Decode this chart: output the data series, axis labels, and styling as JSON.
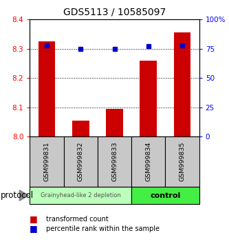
{
  "title": "GDS5113 / 10585097",
  "samples": [
    "GSM999831",
    "GSM999832",
    "GSM999833",
    "GSM999834",
    "GSM999835"
  ],
  "transformed_counts": [
    8.325,
    8.055,
    8.095,
    8.26,
    8.355
  ],
  "percentile_ranks": [
    78,
    75,
    75,
    77,
    78
  ],
  "ylim_left": [
    8.0,
    8.4
  ],
  "ylim_right": [
    0,
    100
  ],
  "yticks_left": [
    8.0,
    8.1,
    8.2,
    8.3,
    8.4
  ],
  "yticks_right": [
    0,
    25,
    50,
    75,
    100
  ],
  "ytick_labels_right": [
    "0",
    "25",
    "50",
    "75",
    "100%"
  ],
  "bar_color": "#cc0000",
  "dot_color": "#0000cc",
  "group1_label": "Grainyhead-like 2 depletion",
  "group2_label": "control",
  "group1_color": "#bbffbb",
  "group2_color": "#44ee44",
  "protocol_label": "protocol",
  "legend_bar_label": "transformed count",
  "legend_dot_label": "percentile rank within the sample",
  "bar_width": 0.5,
  "base_value": 8.0,
  "fig_width": 3.33,
  "fig_height": 3.54,
  "dpi": 100
}
